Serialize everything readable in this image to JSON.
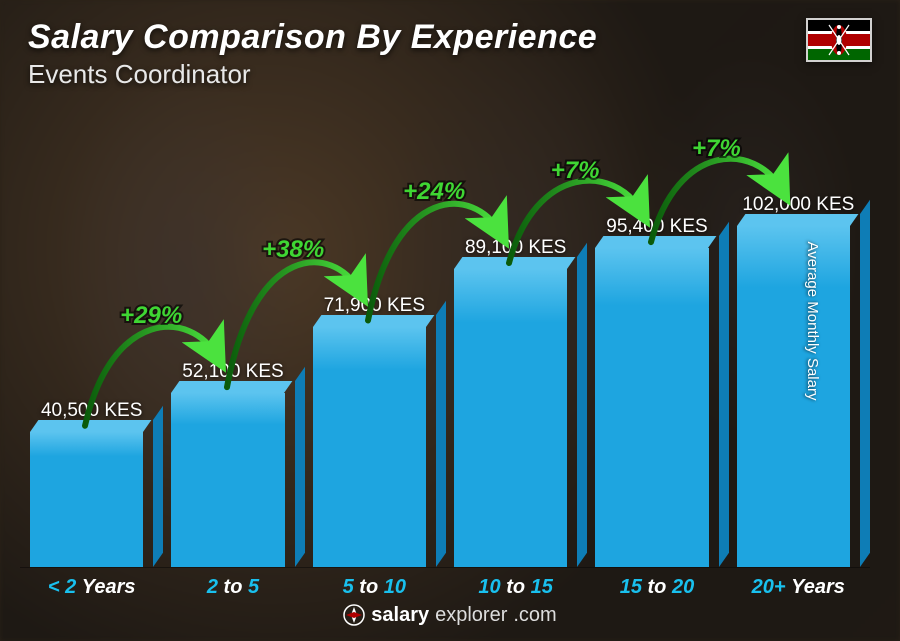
{
  "header": {
    "title": "Salary Comparison By Experience",
    "subtitle": "Events Coordinator"
  },
  "flag": {
    "stripes": [
      "#000000",
      "#b00000",
      "#006600"
    ],
    "thin": "#ffffff",
    "shield_red": "#b00000",
    "shield_white": "#ffffff",
    "shield_black": "#000000"
  },
  "chart": {
    "type": "bar",
    "currency": "KES",
    "y_axis_label": "Average Monthly Salary",
    "max_value": 102000,
    "chart_area_height_ratio": 0.78,
    "bar_color_main": "#1ea5e0",
    "bar_color_light": "#5cc4ef",
    "bar_color_dark": "#0e7db6",
    "accent_color": "#19c0ee",
    "pct_color": "#3fd633",
    "bars": [
      {
        "label_main": "< 2",
        "label_unit": "Years",
        "value": 40500,
        "value_text": "40,500 KES"
      },
      {
        "label_main": "2",
        "label_mid": " to ",
        "label_end": "5",
        "value": 52100,
        "value_text": "52,100 KES",
        "pct": "+29%"
      },
      {
        "label_main": "5",
        "label_mid": " to ",
        "label_end": "10",
        "value": 71900,
        "value_text": "71,900 KES",
        "pct": "+38%"
      },
      {
        "label_main": "10",
        "label_mid": " to ",
        "label_end": "15",
        "value": 89100,
        "value_text": "89,100 KES",
        "pct": "+24%"
      },
      {
        "label_main": "15",
        "label_mid": " to ",
        "label_end": "20",
        "value": 95400,
        "value_text": "95,400 KES",
        "pct": "+7%"
      },
      {
        "label_main": "20+",
        "label_unit": "Years",
        "value": 102000,
        "value_text": "102,000 KES",
        "pct": "+7%"
      }
    ]
  },
  "footer": {
    "brand_bold": "salary",
    "brand_light": "explorer",
    "domain": ".com"
  }
}
